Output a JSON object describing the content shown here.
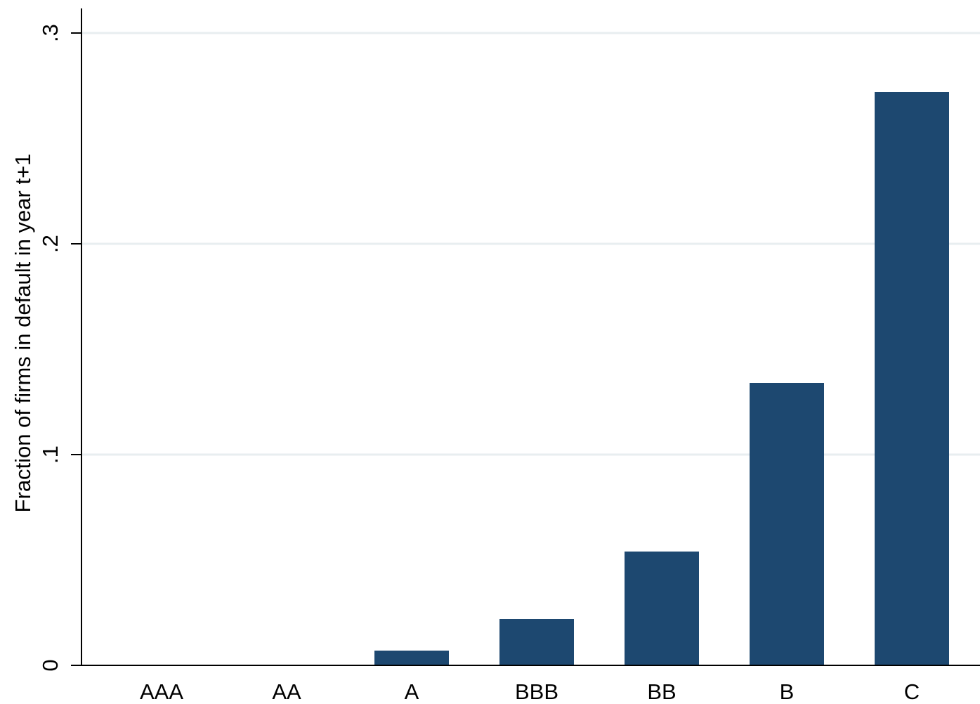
{
  "chart_data": {
    "type": "bar",
    "title": "",
    "xlabel": "",
    "ylabel": "Fraction of firms in default in year t+1",
    "categories": [
      "AAA",
      "AA",
      "A",
      "BBB",
      "BB",
      "B",
      "C"
    ],
    "values": [
      0,
      0,
      0.007,
      0.022,
      0.054,
      0.134,
      0.272
    ],
    "ylim": [
      0,
      0.3
    ],
    "yticks": [
      0,
      0.1,
      0.2,
      0.3
    ],
    "ytick_labels": [
      "0",
      ".1",
      ".2",
      ".3"
    ],
    "grid": true,
    "bar_color": "#1d4870",
    "grid_color": "#e8eef0"
  }
}
